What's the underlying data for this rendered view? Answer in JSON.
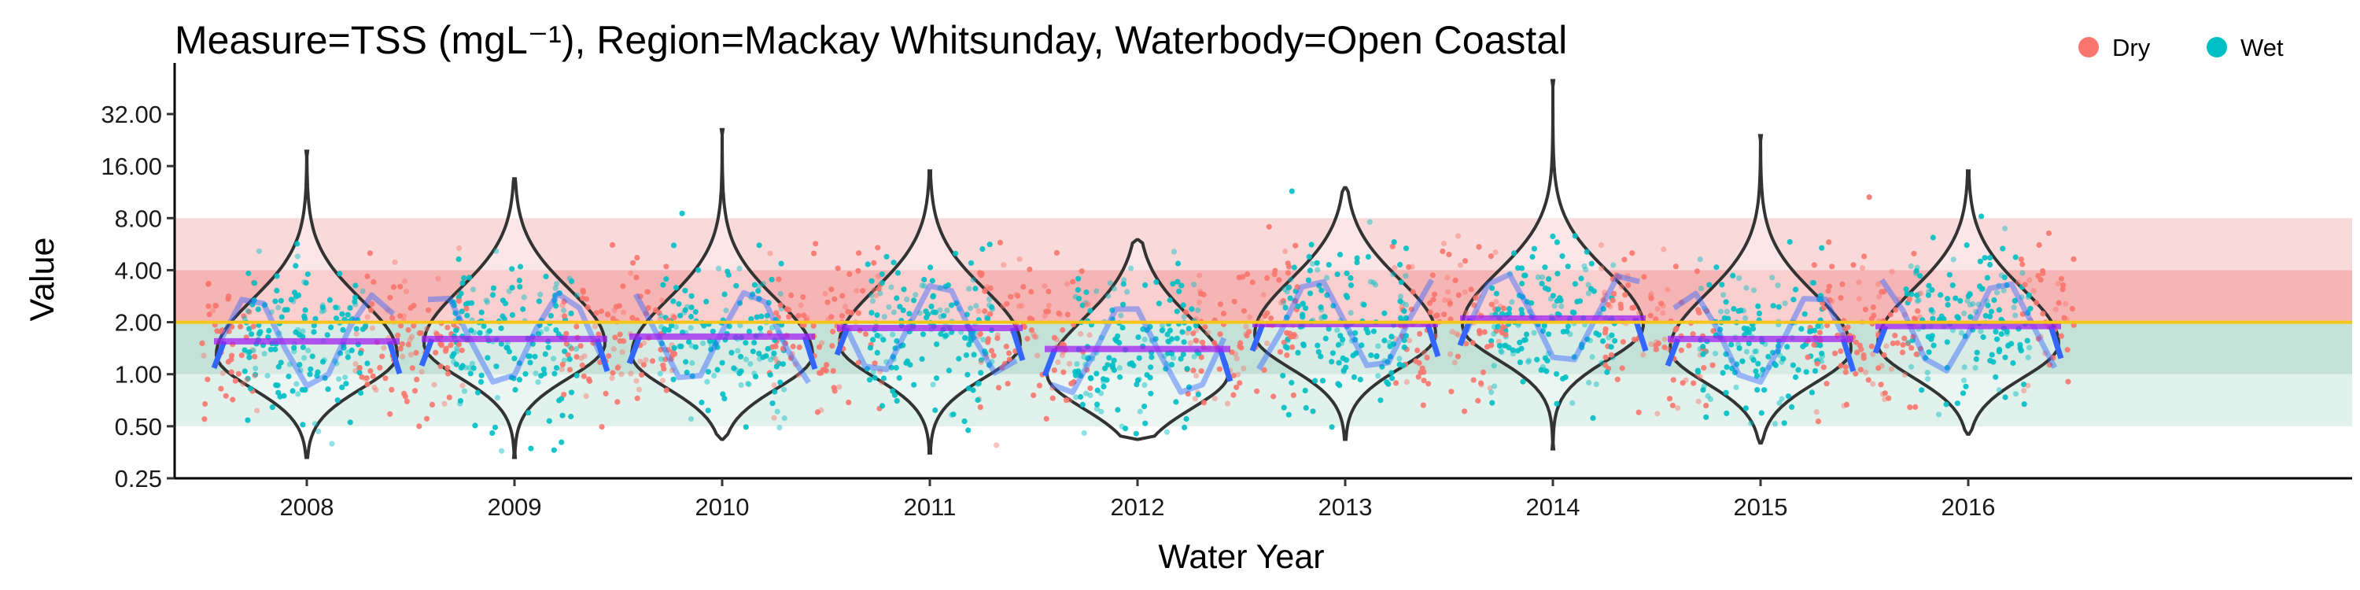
{
  "chart_data": {
    "type": "violin",
    "title": "Measure=TSS (mgL⁻¹), Region=Mackay Whitsunday, Waterbody=Open Coastal",
    "xlabel": "Water Year",
    "ylabel": "Value",
    "y_scale": "log2",
    "ylim": [
      0.25,
      60
    ],
    "y_ticks": [
      0.25,
      0.5,
      1,
      2,
      4,
      8,
      16,
      32
    ],
    "y_tick_labels": [
      "0.25",
      "0.50",
      "1.00",
      "2.00",
      "4.00",
      "8.00",
      "16.00",
      "32.00"
    ],
    "categories": [
      "2008",
      "2009",
      "2010",
      "2011",
      "2012",
      "2013",
      "2014",
      "2015",
      "2016"
    ],
    "legend": {
      "position": "top-right",
      "entries": [
        {
          "label": "Dry",
          "color": "#F8766D"
        },
        {
          "label": "Wet",
          "color": "#00BFC4"
        }
      ]
    },
    "guideline": {
      "value": 2.0,
      "color": "#F5C518"
    },
    "bands": [
      {
        "from": 4,
        "to": 8,
        "color": "#F8D4D4"
      },
      {
        "from": 2,
        "to": 4,
        "color": "#F4A8A8"
      },
      {
        "from": 1,
        "to": 2,
        "color": "#B8DCCF"
      },
      {
        "from": 0.5,
        "to": 1,
        "color": "#DCEEE7"
      }
    ],
    "series": [
      {
        "year": "2008",
        "median": 1.55,
        "violin_min": 0.33,
        "violin_max": 19.5,
        "mode": 1.3
      },
      {
        "year": "2009",
        "median": 1.6,
        "violin_min": 0.33,
        "violin_max": 13.5,
        "mode": 1.5
      },
      {
        "year": "2010",
        "median": 1.65,
        "violin_min": 0.42,
        "violin_max": 26.0,
        "mode": 1.3
      },
      {
        "year": "2011",
        "median": 1.85,
        "violin_min": 0.35,
        "violin_max": 15.0,
        "mode": 1.5
      },
      {
        "year": "2012",
        "median": 1.4,
        "violin_min": 0.42,
        "violin_max": 6.0,
        "mode": 1.0
      },
      {
        "year": "2013",
        "median": 1.95,
        "violin_min": 0.42,
        "violin_max": 12.0,
        "mode": 1.7
      },
      {
        "year": "2014",
        "median": 2.1,
        "violin_min": 0.37,
        "violin_max": 50.0,
        "mode": 1.9
      },
      {
        "year": "2015",
        "median": 1.6,
        "violin_min": 0.4,
        "violin_max": 24.0,
        "mode": 1.4
      },
      {
        "year": "2016",
        "median": 1.9,
        "violin_min": 0.45,
        "violin_max": 15.0,
        "mode": 1.5
      }
    ],
    "grid": false
  },
  "colors": {
    "dry": "#F8766D",
    "wet": "#00BFC4",
    "trend": "#3366FF",
    "median": "#A020F0",
    "violin_outline": "#333333",
    "guideline": "#F5C518"
  }
}
